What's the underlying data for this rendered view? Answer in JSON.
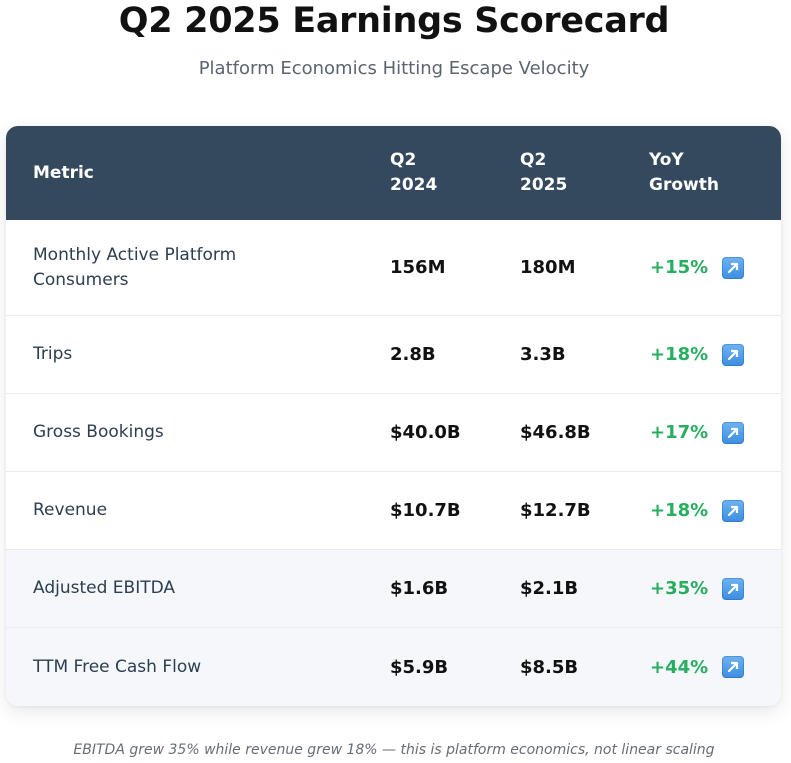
{
  "header": {
    "title": "Q2 2025 Earnings Scorecard",
    "subtitle": "Platform Economics Hitting Escape Velocity"
  },
  "table": {
    "columns": {
      "metric": "Metric",
      "q2_2024": [
        "Q2",
        "2024"
      ],
      "q2_2025": [
        "Q2",
        "2025"
      ],
      "yoy": [
        "YoY",
        "Growth"
      ]
    },
    "rows": [
      {
        "metric": [
          "Monthly Active Platform",
          "Consumers"
        ],
        "q2_2024": "156M",
        "q2_2025": "180M",
        "yoy": "+15%",
        "icon": "up-right-arrow-icon"
      },
      {
        "metric": [
          "Trips"
        ],
        "q2_2024": "2.8B",
        "q2_2025": "3.3B",
        "yoy": "+18%",
        "icon": "up-right-arrow-icon"
      },
      {
        "metric": [
          "Gross Bookings"
        ],
        "q2_2024": "$40.0B",
        "q2_2025": "$46.8B",
        "yoy": "+17%",
        "icon": "up-right-arrow-icon"
      },
      {
        "metric": [
          "Revenue"
        ],
        "q2_2024": "$10.7B",
        "q2_2025": "$12.7B",
        "yoy": "+18%",
        "icon": "up-right-arrow-icon"
      },
      {
        "metric": [
          "Adjusted EBITDA"
        ],
        "q2_2024": "$1.6B",
        "q2_2025": "$2.1B",
        "yoy": "+35%",
        "icon": "up-right-arrow-icon"
      },
      {
        "metric": [
          "TTM Free Cash Flow"
        ],
        "q2_2024": "$5.9B",
        "q2_2025": "$8.5B",
        "yoy": "+44%",
        "icon": "up-right-arrow-icon"
      }
    ]
  },
  "footnote": "EBITDA grew 35% while revenue grew 18% — this is platform economics, not linear scaling",
  "colors": {
    "header_bg": "#34495e",
    "growth_text": "#27ae60",
    "highlight_row_bg": "#f5f7fb",
    "arrow_icon_bg": "#4a9be8"
  }
}
